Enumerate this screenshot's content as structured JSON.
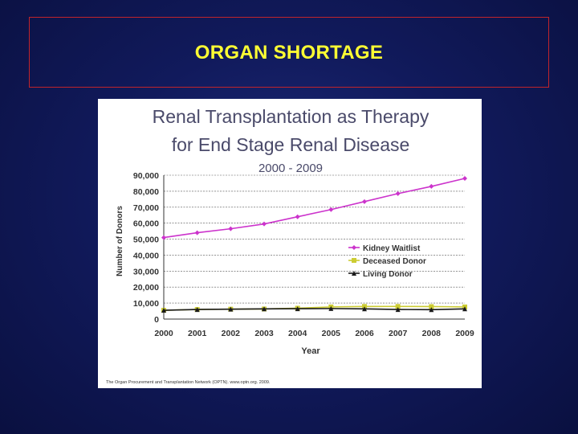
{
  "slide": {
    "heading": "ORGAN SHORTAGE"
  },
  "chart_data": {
    "type": "line",
    "title": "Renal Transplantation as Therapy for End Stage Renal Disease",
    "title_lines": [
      "Renal Transplantation as Therapy",
      "for End Stage Renal Disease"
    ],
    "subtitle": "2000 - 2009",
    "xlabel": "Year",
    "ylabel": "Number of Donors",
    "categories": [
      "2000",
      "2001",
      "2002",
      "2003",
      "2004",
      "2005",
      "2006",
      "2007",
      "2008",
      "2009"
    ],
    "ylim": [
      0,
      90000
    ],
    "yticks": [
      0,
      10000,
      20000,
      30000,
      40000,
      50000,
      60000,
      70000,
      80000,
      90000
    ],
    "ytick_labels": [
      "0",
      "10,000",
      "20,000",
      "30,000",
      "40,000",
      "50,000",
      "60,000",
      "70,000",
      "80,000",
      "90,000"
    ],
    "grid": true,
    "legend_position": "right-middle",
    "series": [
      {
        "name": "Kidney Waitlist",
        "color": "#cc33cc",
        "marker": "diamond",
        "values": [
          51000,
          54000,
          56500,
          59500,
          64000,
          68500,
          73500,
          78500,
          83000,
          88000
        ]
      },
      {
        "name": "Deceased Donor",
        "color": "#cccc33",
        "marker": "square",
        "values": [
          5500,
          6000,
          6200,
          6300,
          6800,
          7600,
          7900,
          7900,
          7800,
          7600
        ]
      },
      {
        "name": "Living Donor",
        "color": "#1a1a1a",
        "marker": "triangle",
        "values": [
          5500,
          6000,
          6200,
          6400,
          6500,
          6600,
          6400,
          6000,
          5900,
          6400
        ]
      }
    ],
    "footnote": "The Organ Procurement and Transplantation Network (OPTN). www.optn.org. 2009."
  }
}
